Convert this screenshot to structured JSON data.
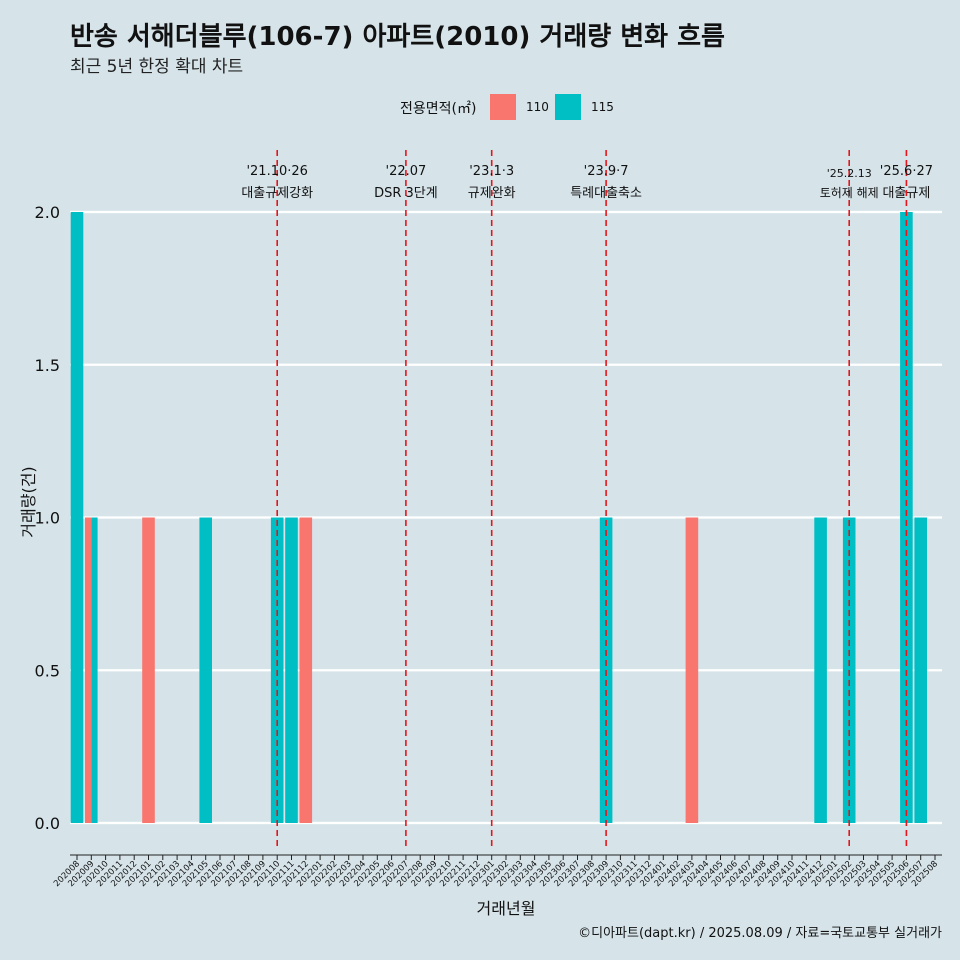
{
  "header": {
    "title": "반송 서해더블루(106-7) 아파트(2010) 거래량 변화 흐름",
    "subtitle": "최근 5년 한정 확대 차트"
  },
  "legend": {
    "title": "전용면적(㎡)",
    "items": [
      {
        "label": "110",
        "color": "#f8766d"
      },
      {
        "label": "115",
        "color": "#00bfc4"
      }
    ]
  },
  "caption": "©디아파트(dapt.kr) / 2025.08.09 / 자료=국토교통부 실거래가",
  "chart_data": {
    "type": "bar",
    "xlabel": "거래년월",
    "ylabel": "거래량(건)",
    "ylim": [
      0,
      2
    ],
    "yticks": [
      "0.0",
      "0.5",
      "1.0",
      "1.5",
      "2.0"
    ],
    "categories": [
      "202008",
      "202009",
      "202010",
      "202011",
      "202012",
      "202101",
      "202102",
      "202103",
      "202104",
      "202105",
      "202106",
      "202107",
      "202108",
      "202109",
      "202110",
      "202111",
      "202112",
      "202201",
      "202202",
      "202203",
      "202204",
      "202205",
      "202206",
      "202207",
      "202208",
      "202209",
      "202210",
      "202211",
      "202212",
      "202301",
      "202302",
      "202303",
      "202304",
      "202305",
      "202306",
      "202307",
      "202308",
      "202309",
      "202310",
      "202311",
      "202312",
      "202401",
      "202402",
      "202403",
      "202404",
      "202405",
      "202406",
      "202407",
      "202408",
      "202409",
      "202410",
      "202411",
      "202412",
      "202501",
      "202502",
      "202503",
      "202504",
      "202505",
      "202506",
      "202507",
      "202508"
    ],
    "series": [
      {
        "name": "110",
        "color": "#f8766d",
        "points": [
          [
            "202009",
            1
          ],
          [
            "202101",
            1
          ],
          [
            "202112",
            1
          ],
          [
            "202403",
            1
          ]
        ]
      },
      {
        "name": "115",
        "color": "#00bfc4",
        "points": [
          [
            "202008",
            2
          ],
          [
            "202009",
            1
          ],
          [
            "202105",
            1
          ],
          [
            "202110",
            1
          ],
          [
            "202111",
            1
          ],
          [
            "202309",
            1
          ],
          [
            "202412",
            1
          ],
          [
            "202502",
            1
          ],
          [
            "202506",
            2
          ],
          [
            "202507",
            1
          ]
        ]
      }
    ],
    "events": [
      {
        "month": "202110",
        "date": "'21.10·26",
        "label": "대출규제강화"
      },
      {
        "month": "202207",
        "date": "'22.07",
        "label": "DSR 3단계"
      },
      {
        "month": "202301",
        "date": "'23.1·3",
        "label": "규제완화"
      },
      {
        "month": "202309",
        "date": "'23.9·7",
        "label": "특례대출축소"
      },
      {
        "month": "202502",
        "date": "'25.2.13",
        "label": "토허제 해제"
      },
      {
        "month": "202506",
        "date": "'25.6·27",
        "label": "대출규제"
      }
    ]
  }
}
